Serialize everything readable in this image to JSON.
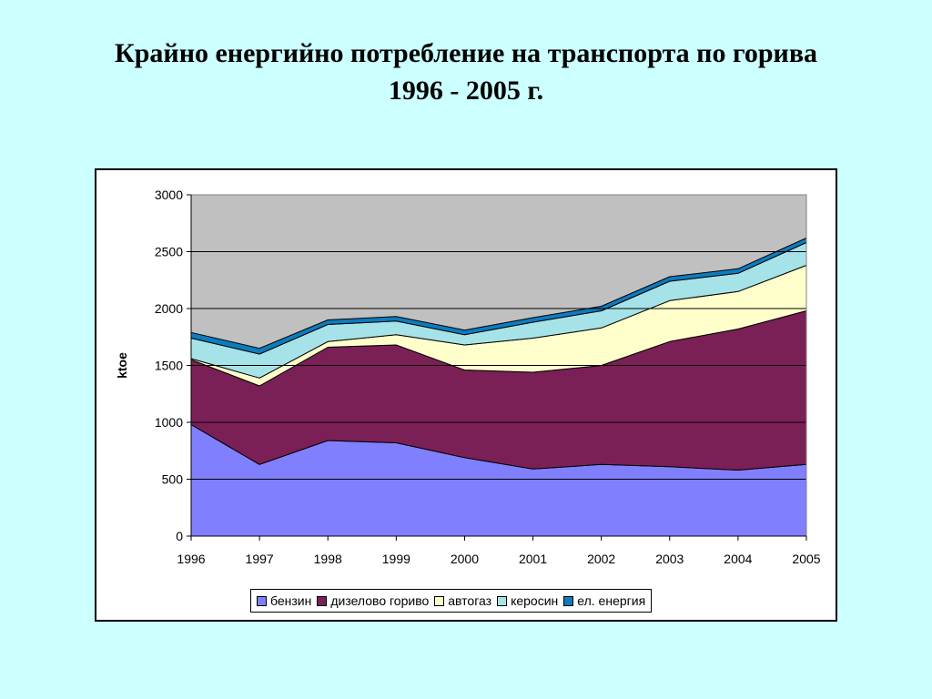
{
  "slide": {
    "title_line1": "Крайно енергийно потребление на транспорта по горива",
    "title_line2": "1996 - 2005 г."
  },
  "chart_data": {
    "type": "area",
    "stacked": true,
    "title": "",
    "xlabel": "",
    "ylabel": "ktoe",
    "x": [
      "1996",
      "1997",
      "1998",
      "1999",
      "2000",
      "2001",
      "2002",
      "2003",
      "2004",
      "2005"
    ],
    "ylim": [
      0,
      3000
    ],
    "yticks": [
      "0",
      "500",
      "1000",
      "1500",
      "2000",
      "2500",
      "3000"
    ],
    "grid": true,
    "plot_background": "#c0c0c0",
    "legend_position": "bottom",
    "series": [
      {
        "name": "бензин",
        "color": "#8080ff",
        "values": [
          980,
          630,
          840,
          820,
          690,
          590,
          630,
          610,
          580,
          630
        ]
      },
      {
        "name": "дизелово гориво",
        "color": "#7b1f57",
        "values": [
          570,
          690,
          820,
          860,
          770,
          850,
          870,
          1100,
          1240,
          1350
        ]
      },
      {
        "name": "автогаз",
        "color": "#ffffcc",
        "values": [
          10,
          70,
          50,
          90,
          220,
          300,
          330,
          360,
          330,
          400
        ]
      },
      {
        "name": "керосин",
        "color": "#a6e3e9",
        "values": [
          180,
          210,
          150,
          120,
          90,
          140,
          150,
          170,
          160,
          200
        ]
      },
      {
        "name": "ел. енергия",
        "color": "#0c7cbf",
        "values": [
          50,
          50,
          40,
          40,
          40,
          40,
          40,
          40,
          40,
          40
        ]
      }
    ]
  }
}
